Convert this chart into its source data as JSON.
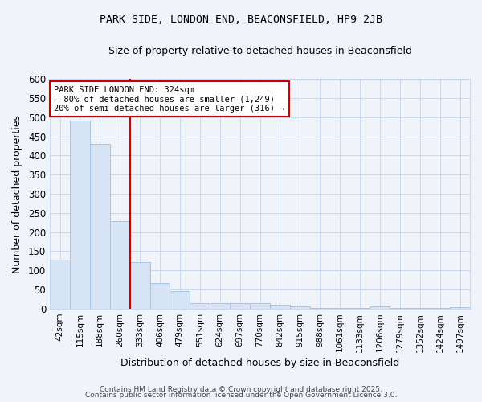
{
  "title": "PARK SIDE, LONDON END, BEACONSFIELD, HP9 2JB",
  "subtitle": "Size of property relative to detached houses in Beaconsfield",
  "xlabel": "Distribution of detached houses by size in Beaconsfield",
  "ylabel": "Number of detached properties",
  "bar_color": "#d6e4f5",
  "bar_edge_color": "#a8c4e0",
  "background_color": "#f0f4fa",
  "plot_bg_color": "#f0f4fa",
  "grid_color": "#c8d8ec",
  "categories": [
    "42sqm",
    "115sqm",
    "188sqm",
    "260sqm",
    "333sqm",
    "406sqm",
    "479sqm",
    "551sqm",
    "624sqm",
    "697sqm",
    "770sqm",
    "842sqm",
    "915sqm",
    "988sqm",
    "1061sqm",
    "1133sqm",
    "1206sqm",
    "1279sqm",
    "1352sqm",
    "1424sqm",
    "1497sqm"
  ],
  "values": [
    128,
    490,
    430,
    228,
    122,
    66,
    46,
    14,
    14,
    14,
    14,
    10,
    6,
    3,
    3,
    3,
    6,
    1,
    1,
    1,
    4
  ],
  "vline_x": 3.5,
  "vline_color": "#cc0000",
  "annotation_text": "PARK SIDE LONDON END: 324sqm\n← 80% of detached houses are smaller (1,249)\n20% of semi-detached houses are larger (316) →",
  "annotation_box_color": "#ffffff",
  "annotation_box_edge": "#cc0000",
  "footer_line1": "Contains HM Land Registry data © Crown copyright and database right 2025.",
  "footer_line2": "Contains public sector information licensed under the Open Government Licence 3.0.",
  "ylim": [
    0,
    600
  ],
  "yticks": [
    0,
    50,
    100,
    150,
    200,
    250,
    300,
    350,
    400,
    450,
    500,
    550,
    600
  ]
}
